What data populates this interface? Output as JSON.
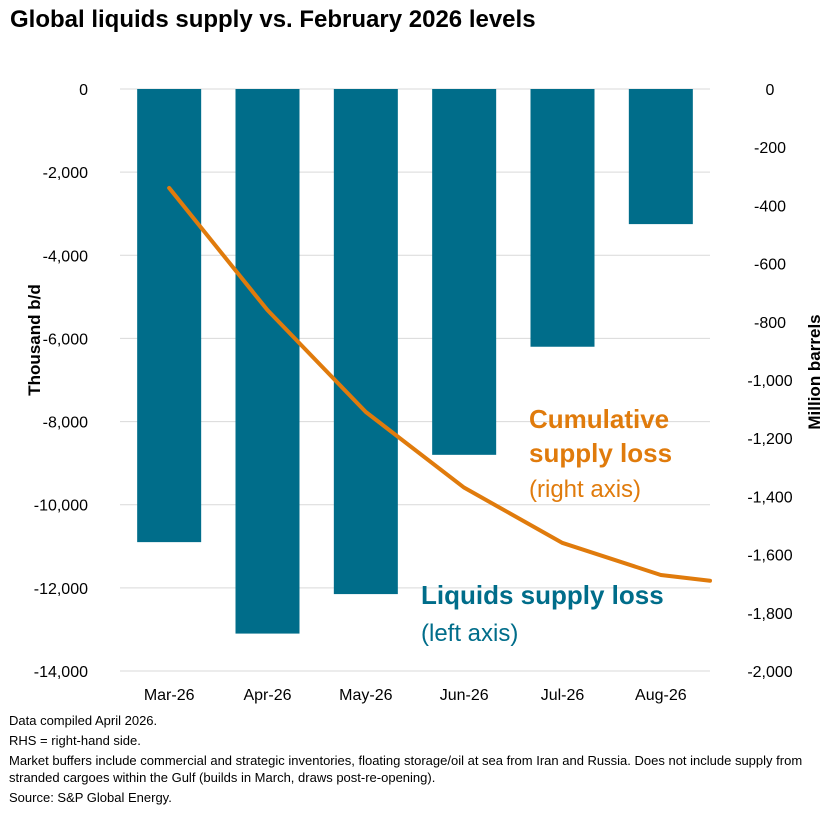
{
  "title": "Global liquids supply vs. February 2026 levels",
  "chart_data": {
    "type": "bar",
    "categories": [
      "Mar-26",
      "Apr-26",
      "May-26",
      "Jun-26",
      "Jul-26",
      "Aug-26"
    ],
    "series": [
      {
        "name": "Liquids supply loss",
        "axis": "left",
        "type": "bar",
        "color": "#006d8a",
        "values": [
          -10900,
          -13100,
          -12150,
          -8800,
          -6200,
          -3250
        ]
      },
      {
        "name": "Cumulative supply loss",
        "axis": "right",
        "type": "line",
        "color": "#e07b0c",
        "x": [
          0,
          1,
          2,
          3,
          4,
          5,
          5.5
        ],
        "values": [
          -340,
          -760,
          -1110,
          -1370,
          -1560,
          -1670,
          -1690
        ]
      }
    ],
    "left_axis": {
      "label": "Thousand b/d",
      "ylim": [
        -14000,
        0
      ],
      "ticks": [
        0,
        -2000,
        -4000,
        -6000,
        -8000,
        -10000,
        -12000,
        -14000
      ],
      "tick_labels": [
        "0",
        "-2,000",
        "-4,000",
        "-6,000",
        "-8,000",
        "-10,000",
        "-12,000",
        "-14,000"
      ]
    },
    "right_axis": {
      "label": "Million barrels",
      "ylim": [
        -2000,
        0
      ],
      "ticks": [
        0,
        -200,
        -400,
        -600,
        -800,
        -1000,
        -1200,
        -1400,
        -1600,
        -1800,
        -2000
      ],
      "tick_labels": [
        "0",
        "-200",
        "-400",
        "-600",
        "-800",
        "-1,000",
        "-1,200",
        "-1,400",
        "-1,600",
        "-1,800",
        "-2,000"
      ]
    },
    "annotations": {
      "line_title": "Cumulative",
      "line_title2": "supply loss",
      "line_sub": "(right axis)",
      "bar_title": "Liquids supply loss",
      "bar_sub": "(left axis)"
    },
    "grid": true,
    "legend": "none"
  },
  "footnotes": [
    "Data compiled April 2026.",
    "RHS = right-hand side.",
    "Market buffers include commercial and strategic inventories, floating storage/oil at sea from Iran and Russia. Does not include supply from stranded cargoes within the Gulf (builds in March, draws post-re-opening).",
    "Source: S&P Global Energy."
  ]
}
